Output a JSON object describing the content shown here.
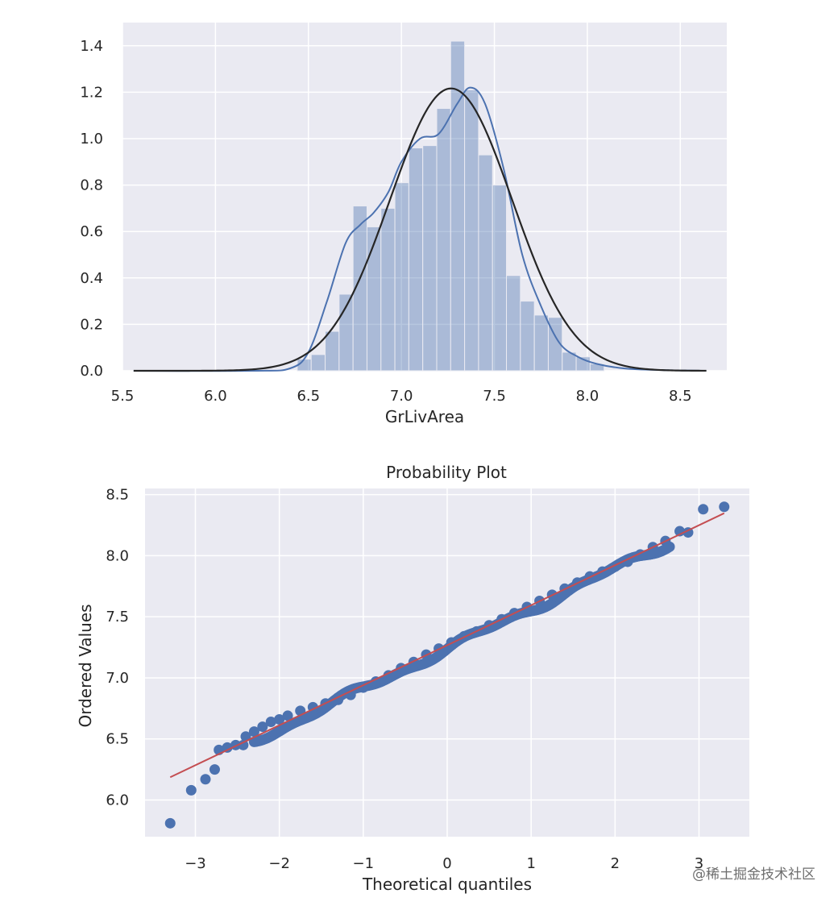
{
  "chart_data": [
    {
      "type": "bar",
      "subtype": "histogram_with_kde_and_normal_fit",
      "title": "",
      "xlabel": "GrLivArea",
      "ylabel": "",
      "xlim": [
        5.5,
        8.75
      ],
      "ylim": [
        0,
        1.5
      ],
      "xticks": [
        5.5,
        6.0,
        6.5,
        7.0,
        7.5,
        8.0,
        8.5
      ],
      "xtick_labels": [
        "5.5",
        "6.0",
        "6.5",
        "7.0",
        "7.5",
        "8.0",
        "8.5"
      ],
      "yticks": [
        0.0,
        0.2,
        0.4,
        0.6,
        0.8,
        1.0,
        1.2,
        1.4
      ],
      "ytick_labels": [
        "0.0",
        "0.2",
        "0.4",
        "0.6",
        "0.8",
        "1.0",
        "1.2",
        "1.4"
      ],
      "grid": true,
      "bins": {
        "start": 6.44,
        "width": 0.075,
        "heights": [
          0.05,
          0.07,
          0.17,
          0.33,
          0.71,
          0.62,
          0.7,
          0.81,
          0.96,
          0.97,
          1.13,
          1.42,
          1.21,
          0.93,
          0.8,
          0.41,
          0.3,
          0.24,
          0.23,
          0.08,
          0.06,
          0.03
        ]
      },
      "series": [
        {
          "name": "KDE",
          "color": "#4c72b0",
          "x": [
            5.56,
            6.2,
            6.4,
            6.5,
            6.6,
            6.7,
            6.78,
            6.85,
            6.93,
            7.0,
            7.1,
            7.2,
            7.3,
            7.37,
            7.45,
            7.55,
            7.65,
            7.75,
            7.85,
            7.95,
            8.05,
            8.2,
            8.4,
            8.64
          ],
          "y": [
            0.0,
            0.0,
            0.01,
            0.08,
            0.3,
            0.55,
            0.63,
            0.68,
            0.77,
            0.9,
            1.0,
            1.02,
            1.15,
            1.22,
            1.15,
            0.87,
            0.5,
            0.28,
            0.12,
            0.06,
            0.03,
            0.01,
            0.003,
            0.0
          ]
        },
        {
          "name": "Normal fit",
          "color": "#262626",
          "mu": 7.267,
          "sigma": 0.328,
          "x_range": [
            5.56,
            8.64
          ]
        }
      ]
    },
    {
      "type": "scatter",
      "title": "Probability Plot",
      "xlabel": "Theoretical quantiles",
      "ylabel": "Ordered Values",
      "xlim": [
        -3.6,
        3.6
      ],
      "ylim": [
        5.7,
        8.55
      ],
      "xticks": [
        -3,
        -2,
        -1,
        0,
        1,
        2,
        3
      ],
      "xtick_labels": [
        "−3",
        "−2",
        "−1",
        "0",
        "1",
        "2",
        "3"
      ],
      "yticks": [
        6.0,
        6.5,
        7.0,
        7.5,
        8.0,
        8.5
      ],
      "ytick_labels": [
        "6.0",
        "6.5",
        "7.0",
        "7.5",
        "8.0",
        "8.5"
      ],
      "grid": true,
      "fit_line": {
        "color": "#c44e52",
        "slope": 0.3274,
        "intercept": 7.267,
        "x_range": [
          -3.3,
          3.3
        ]
      },
      "scatter_color": "#4c72b0",
      "outliers": [
        {
          "x": -3.3,
          "y": 5.81
        },
        {
          "x": -3.05,
          "y": 6.08
        },
        {
          "x": -2.88,
          "y": 6.17
        },
        {
          "x": -2.77,
          "y": 6.25
        },
        {
          "x": 2.77,
          "y": 8.2
        },
        {
          "x": 2.87,
          "y": 8.19
        },
        {
          "x": 3.05,
          "y": 8.38
        },
        {
          "x": 3.3,
          "y": 8.4
        }
      ],
      "body_points": [
        {
          "x": -2.72,
          "y": 6.41
        },
        {
          "x": -2.62,
          "y": 6.43
        },
        {
          "x": -2.52,
          "y": 6.45
        },
        {
          "x": -2.43,
          "y": 6.45
        },
        {
          "x": -2.4,
          "y": 6.52
        },
        {
          "x": -2.3,
          "y": 6.56
        },
        {
          "x": -2.2,
          "y": 6.6
        },
        {
          "x": -2.1,
          "y": 6.64
        },
        {
          "x": -2.0,
          "y": 6.66
        },
        {
          "x": -1.9,
          "y": 6.69
        },
        {
          "x": -1.75,
          "y": 6.73
        },
        {
          "x": -1.6,
          "y": 6.76
        },
        {
          "x": -1.45,
          "y": 6.79
        },
        {
          "x": -1.3,
          "y": 6.82
        },
        {
          "x": -1.15,
          "y": 6.86
        },
        {
          "x": -1.0,
          "y": 6.92
        },
        {
          "x": -0.85,
          "y": 6.97
        },
        {
          "x": -0.7,
          "y": 7.02
        },
        {
          "x": -0.55,
          "y": 7.08
        },
        {
          "x": -0.4,
          "y": 7.13
        },
        {
          "x": -0.25,
          "y": 7.19
        },
        {
          "x": -0.1,
          "y": 7.24
        },
        {
          "x": 0.05,
          "y": 7.29
        },
        {
          "x": 0.2,
          "y": 7.34
        },
        {
          "x": 0.35,
          "y": 7.38
        },
        {
          "x": 0.5,
          "y": 7.43
        },
        {
          "x": 0.65,
          "y": 7.48
        },
        {
          "x": 0.8,
          "y": 7.53
        },
        {
          "x": 0.95,
          "y": 7.58
        },
        {
          "x": 1.1,
          "y": 7.63
        },
        {
          "x": 1.25,
          "y": 7.68
        },
        {
          "x": 1.4,
          "y": 7.73
        },
        {
          "x": 1.55,
          "y": 7.78
        },
        {
          "x": 1.7,
          "y": 7.83
        },
        {
          "x": 1.85,
          "y": 7.87
        },
        {
          "x": 2.0,
          "y": 7.91
        },
        {
          "x": 2.15,
          "y": 7.95
        },
        {
          "x": 2.3,
          "y": 8.01
        },
        {
          "x": 2.45,
          "y": 8.07
        },
        {
          "x": 2.6,
          "y": 8.12
        }
      ],
      "dense_band": {
        "x_range": [
          -2.3,
          2.65
        ],
        "offset": -0.03
      }
    }
  ],
  "watermark": "@稀土掘金技术社区"
}
